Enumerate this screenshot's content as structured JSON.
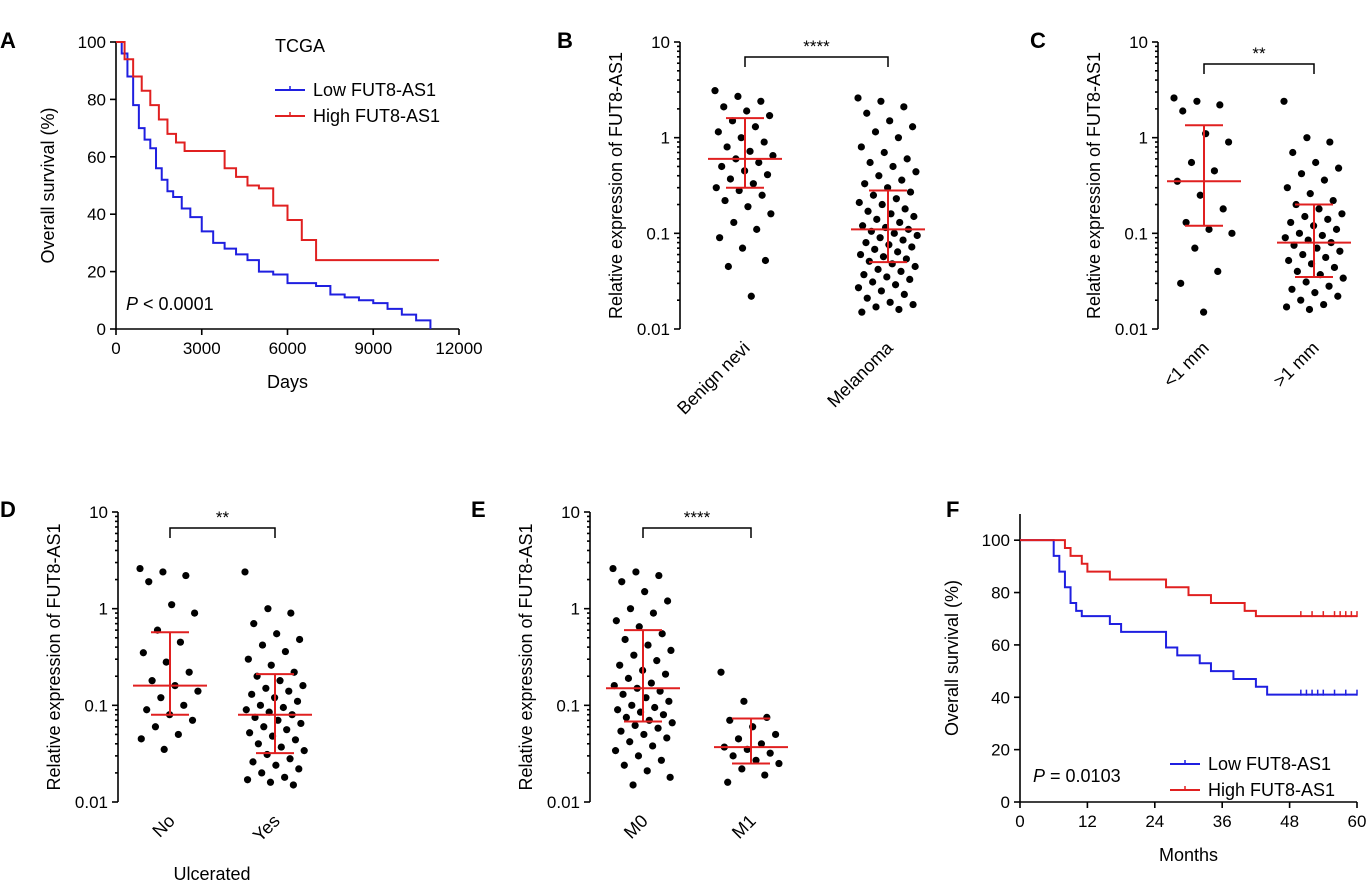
{
  "figure": {
    "panels": [
      {
        "id": "A",
        "type": "line",
        "subtype": "kaplan-meier",
        "title": "TCGA",
        "xlabel": "Days",
        "ylabel": "Overall survival (%)",
        "xlim": [
          0,
          12000
        ],
        "ylim": [
          0,
          100
        ],
        "xticks": [
          0,
          3000,
          6000,
          9000,
          12000
        ],
        "yticks": [
          0,
          20,
          40,
          60,
          80,
          100
        ],
        "annotation": {
          "italic": "P",
          "text": " < 0.0001"
        },
        "legend_position": "top-right",
        "series": [
          {
            "name": "Low FUT8-AS1",
            "color": "#1f1fe0",
            "x": [
              0,
              200,
              400,
              600,
              800,
              1000,
              1200,
              1400,
              1600,
              1800,
              2000,
              2300,
              2600,
              3000,
              3400,
              3800,
              4200,
              4600,
              5000,
              5500,
              6000,
              6500,
              7000,
              7500,
              8000,
              8500,
              9000,
              9500,
              10000,
              10500,
              11000
            ],
            "y": [
              100,
              96,
              88,
              78,
              70,
              66,
              63,
              56,
              52,
              48,
              46,
              42,
              39,
              34,
              30,
              28,
              26,
              24,
              20,
              19,
              16,
              16,
              15,
              12,
              11,
              10,
              9,
              7,
              5,
              3,
              0
            ]
          },
          {
            "name": "High FUT8-AS1",
            "color": "#e02020",
            "x": [
              0,
              300,
              600,
              900,
              1200,
              1500,
              1800,
              2100,
              2400,
              2700,
              3000,
              3500,
              3800,
              4200,
              4600,
              5000,
              5500,
              6000,
              6500,
              7000,
              8000,
              9000,
              10000,
              11000,
              11300
            ],
            "y": [
              100,
              94,
              88,
              83,
              78,
              73,
              68,
              65,
              62,
              62,
              62,
              62,
              56,
              53,
              50,
              49,
              43,
              38,
              31,
              24,
              24,
              24,
              24,
              24,
              24
            ]
          }
        ]
      },
      {
        "id": "B",
        "type": "scatter",
        "subtype": "dot-plot",
        "ylabel": "Relative expression of FUT8-AS1",
        "yscale": "log",
        "ylim": [
          0.01,
          10
        ],
        "yticks": [
          0.01,
          0.1,
          1,
          10
        ],
        "ytick_labels": [
          "0.01",
          "0.1",
          "1",
          "10"
        ],
        "categories": [
          "Benign nevi",
          "Melanoma"
        ],
        "xlabel": "",
        "significance": "****",
        "median": [
          0.6,
          0.11
        ],
        "iqr": [
          [
            0.3,
            1.6
          ],
          [
            0.05,
            0.28
          ]
        ],
        "points": [
          [
            3.1,
            2.7,
            2.4,
            2.1,
            1.9,
            1.7,
            1.5,
            1.3,
            1.15,
            1.0,
            0.9,
            0.8,
            0.72,
            0.65,
            0.6,
            0.55,
            0.5,
            0.45,
            0.41,
            0.37,
            0.33,
            0.3,
            0.28,
            0.25,
            0.22,
            0.19,
            0.16,
            0.13,
            0.11,
            0.09,
            0.07,
            0.052,
            0.045,
            0.022
          ],
          [
            2.6,
            2.4,
            2.1,
            1.8,
            1.5,
            1.3,
            1.15,
            1.0,
            0.8,
            0.7,
            0.6,
            0.55,
            0.5,
            0.44,
            0.4,
            0.36,
            0.33,
            0.3,
            0.27,
            0.25,
            0.23,
            0.21,
            0.2,
            0.18,
            0.17,
            0.16,
            0.15,
            0.14,
            0.13,
            0.12,
            0.115,
            0.11,
            0.105,
            0.1,
            0.095,
            0.09,
            0.085,
            0.08,
            0.076,
            0.072,
            0.068,
            0.064,
            0.06,
            0.057,
            0.054,
            0.051,
            0.048,
            0.045,
            0.042,
            0.04,
            0.037,
            0.035,
            0.033,
            0.031,
            0.029,
            0.027,
            0.025,
            0.023,
            0.021,
            0.019,
            0.018,
            0.017,
            0.016,
            0.015
          ]
        ]
      },
      {
        "id": "C",
        "type": "scatter",
        "subtype": "dot-plot",
        "ylabel": "Relative expression of FUT8-AS1",
        "yscale": "log",
        "ylim": [
          0.01,
          10
        ],
        "yticks": [
          0.01,
          0.1,
          1,
          10
        ],
        "ytick_labels": [
          "0.01",
          "0.1",
          "1",
          "10"
        ],
        "categories": [
          "<1 mm",
          ">1 mm"
        ],
        "xlabel": "",
        "significance": "**",
        "median": [
          0.35,
          0.08
        ],
        "iqr": [
          [
            0.12,
            1.35
          ],
          [
            0.035,
            0.2
          ]
        ],
        "points": [
          [
            2.6,
            2.4,
            2.2,
            1.9,
            1.1,
            0.9,
            0.55,
            0.45,
            0.35,
            0.25,
            0.18,
            0.13,
            0.11,
            0.1,
            0.07,
            0.04,
            0.03,
            0.015
          ],
          [
            2.4,
            1.0,
            0.9,
            0.7,
            0.55,
            0.48,
            0.42,
            0.36,
            0.3,
            0.26,
            0.22,
            0.2,
            0.18,
            0.16,
            0.15,
            0.14,
            0.13,
            0.12,
            0.11,
            0.1,
            0.095,
            0.09,
            0.085,
            0.08,
            0.075,
            0.07,
            0.065,
            0.06,
            0.056,
            0.052,
            0.048,
            0.044,
            0.04,
            0.037,
            0.034,
            0.031,
            0.028,
            0.026,
            0.024,
            0.022,
            0.02,
            0.018,
            0.017,
            0.016
          ]
        ]
      },
      {
        "id": "D",
        "type": "scatter",
        "subtype": "dot-plot",
        "ylabel": "Relative expression of FUT8-AS1",
        "yscale": "log",
        "ylim": [
          0.01,
          10
        ],
        "yticks": [
          0.01,
          0.1,
          1,
          10
        ],
        "ytick_labels": [
          "0.01",
          "0.1",
          "1",
          "10"
        ],
        "categories": [
          "No",
          "Yes"
        ],
        "xlabel": "Ulcerated",
        "significance": "**",
        "median": [
          0.16,
          0.08
        ],
        "iqr": [
          [
            0.08,
            0.57
          ],
          [
            0.032,
            0.21
          ]
        ],
        "points": [
          [
            2.6,
            2.4,
            2.2,
            1.9,
            1.1,
            0.9,
            0.6,
            0.45,
            0.35,
            0.28,
            0.22,
            0.18,
            0.16,
            0.14,
            0.12,
            0.1,
            0.09,
            0.08,
            0.07,
            0.06,
            0.05,
            0.045,
            0.035
          ],
          [
            2.4,
            1.0,
            0.9,
            0.7,
            0.55,
            0.48,
            0.42,
            0.36,
            0.3,
            0.26,
            0.22,
            0.2,
            0.18,
            0.16,
            0.15,
            0.14,
            0.13,
            0.12,
            0.11,
            0.1,
            0.095,
            0.09,
            0.085,
            0.08,
            0.075,
            0.07,
            0.065,
            0.06,
            0.056,
            0.052,
            0.048,
            0.044,
            0.04,
            0.037,
            0.034,
            0.031,
            0.028,
            0.026,
            0.024,
            0.022,
            0.02,
            0.018,
            0.017,
            0.016,
            0.015
          ]
        ]
      },
      {
        "id": "E",
        "type": "scatter",
        "subtype": "dot-plot",
        "ylabel": "Relative expression of FUT8-AS1",
        "yscale": "log",
        "ylim": [
          0.01,
          10
        ],
        "yticks": [
          0.01,
          0.1,
          1,
          10
        ],
        "ytick_labels": [
          "0.01",
          "0.1",
          "1",
          "10"
        ],
        "categories": [
          "M0",
          "M1"
        ],
        "xlabel": "",
        "significance": "****",
        "median": [
          0.15,
          0.037
        ],
        "iqr": [
          [
            0.068,
            0.6
          ],
          [
            0.025,
            0.073
          ]
        ],
        "points": [
          [
            2.6,
            2.4,
            2.2,
            1.9,
            1.5,
            1.2,
            1.0,
            0.9,
            0.75,
            0.65,
            0.55,
            0.48,
            0.42,
            0.37,
            0.33,
            0.29,
            0.26,
            0.23,
            0.21,
            0.19,
            0.17,
            0.16,
            0.15,
            0.14,
            0.13,
            0.12,
            0.11,
            0.1,
            0.095,
            0.09,
            0.085,
            0.08,
            0.075,
            0.07,
            0.066,
            0.062,
            0.058,
            0.054,
            0.05,
            0.046,
            0.042,
            0.038,
            0.034,
            0.03,
            0.027,
            0.024,
            0.021,
            0.018,
            0.015
          ],
          [
            0.22,
            0.11,
            0.075,
            0.07,
            0.06,
            0.05,
            0.045,
            0.04,
            0.037,
            0.035,
            0.032,
            0.03,
            0.027,
            0.025,
            0.022,
            0.019,
            0.016
          ]
        ]
      },
      {
        "id": "F",
        "type": "line",
        "subtype": "kaplan-meier",
        "title": "",
        "xlabel": "Months",
        "ylabel": "Overall survival (%)",
        "xlim": [
          0,
          60
        ],
        "ylim": [
          0,
          110
        ],
        "xticks": [
          0,
          12,
          24,
          36,
          48,
          60
        ],
        "yticks": [
          0,
          20,
          40,
          60,
          80,
          100
        ],
        "annotation": {
          "italic": "P",
          "text": " = 0.0103"
        },
        "legend_position": "bottom-right",
        "series": [
          {
            "name": "Low FUT8-AS1",
            "color": "#1f1fe0",
            "x": [
              0,
              5,
              6,
              7,
              8,
              9,
              10,
              11,
              12,
              14,
              16,
              18,
              20,
              24,
              26,
              28,
              30,
              32,
              34,
              36,
              38,
              40,
              42,
              44,
              50,
              55,
              60
            ],
            "y": [
              100,
              100,
              94,
              88,
              82,
              76,
              73,
              71,
              71,
              71,
              68,
              65,
              65,
              65,
              59,
              56,
              56,
              53,
              50,
              50,
              47,
              47,
              44,
              41,
              41,
              41,
              41
            ],
            "censor_x": [
              50,
              51,
              52,
              53,
              54,
              56,
              58,
              60
            ]
          },
          {
            "name": "High FUT8-AS1",
            "color": "#e02020",
            "x": [
              0,
              7,
              8,
              9,
              10,
              11,
              12,
              14,
              16,
              18,
              20,
              22,
              24,
              26,
              28,
              30,
              32,
              34,
              36,
              38,
              40,
              42,
              44,
              50,
              55,
              60
            ],
            "y": [
              100,
              100,
              97,
              94,
              94,
              91,
              88,
              88,
              85,
              85,
              85,
              85,
              85,
              82,
              82,
              79,
              79,
              76,
              76,
              76,
              73,
              71,
              71,
              71,
              71,
              71
            ],
            "censor_x": [
              50,
              52,
              54,
              56,
              57,
              58,
              59,
              60
            ]
          }
        ]
      }
    ]
  }
}
